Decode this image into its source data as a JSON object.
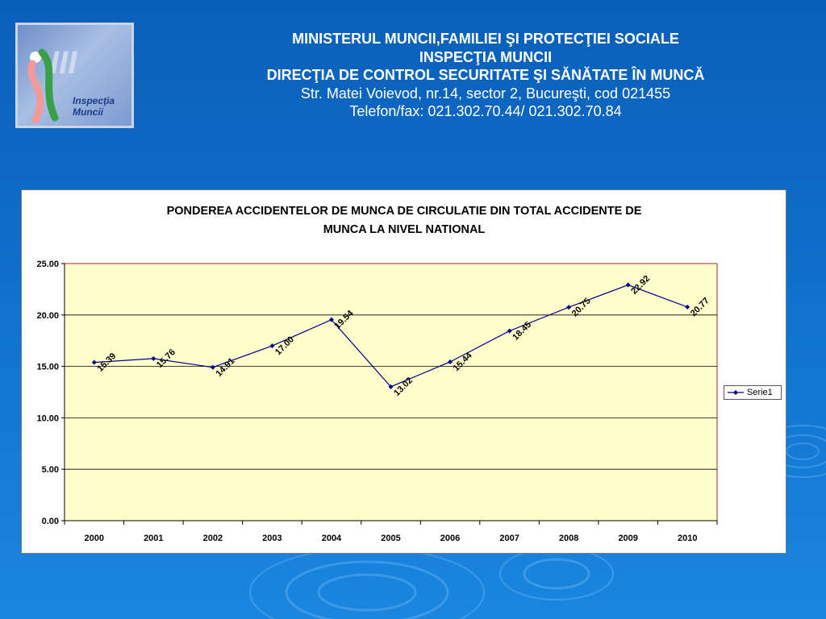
{
  "header": {
    "line1": "MINISTERUL MUNCII,FAMILIEI ŞI PROTECŢIEI SOCIALE",
    "line2": "INSPECŢIA MUNCII",
    "line3": "DIRECŢIA DE CONTROL SECURITATE ŞI SĂNĂTATE ÎN MUNCĂ",
    "line4": "Str. Matei Voievod, nr.14, sector 2, Bucureşti, cod 021455",
    "line5": "Telefon/fax: 021.302.70.44/ 021.302.70.84"
  },
  "logo": {
    "text_line1": "Inspecţia",
    "text_line2": "Muncii",
    "icon": "inspectia-muncii-logo"
  },
  "colors": {
    "background": "#0f6fcc",
    "plot_area": "#ffffcc",
    "series_line": "#00008b",
    "plot_border": "#a52a2a"
  },
  "chart_data": {
    "type": "line",
    "title_line1": "PONDEREA ACCIDENTELOR DE MUNCA DE CIRCULATIE DIN TOTAL ACCIDENTE DE",
    "title_line2": "MUNCA LA NIVEL NATIONAL",
    "categories": [
      "2000",
      "2001",
      "2002",
      "2003",
      "2004",
      "2005",
      "2006",
      "2007",
      "2008",
      "2009",
      "2010"
    ],
    "series": [
      {
        "name": "Serie1",
        "values": [
          15.39,
          15.76,
          14.91,
          17.0,
          19.54,
          13.02,
          15.44,
          18.45,
          20.75,
          22.92,
          20.77
        ],
        "labels": [
          "15.39",
          "15.76",
          "14.91",
          "17.00",
          "19.54",
          "13.02",
          "15.44",
          "18.45",
          "20.75",
          "22.92",
          "20.77"
        ]
      }
    ],
    "yticks": [
      "0.00",
      "5.00",
      "10.00",
      "15.00",
      "20.00",
      "25.00"
    ],
    "ylim": [
      0,
      25
    ],
    "grid": true,
    "legend": "right"
  }
}
